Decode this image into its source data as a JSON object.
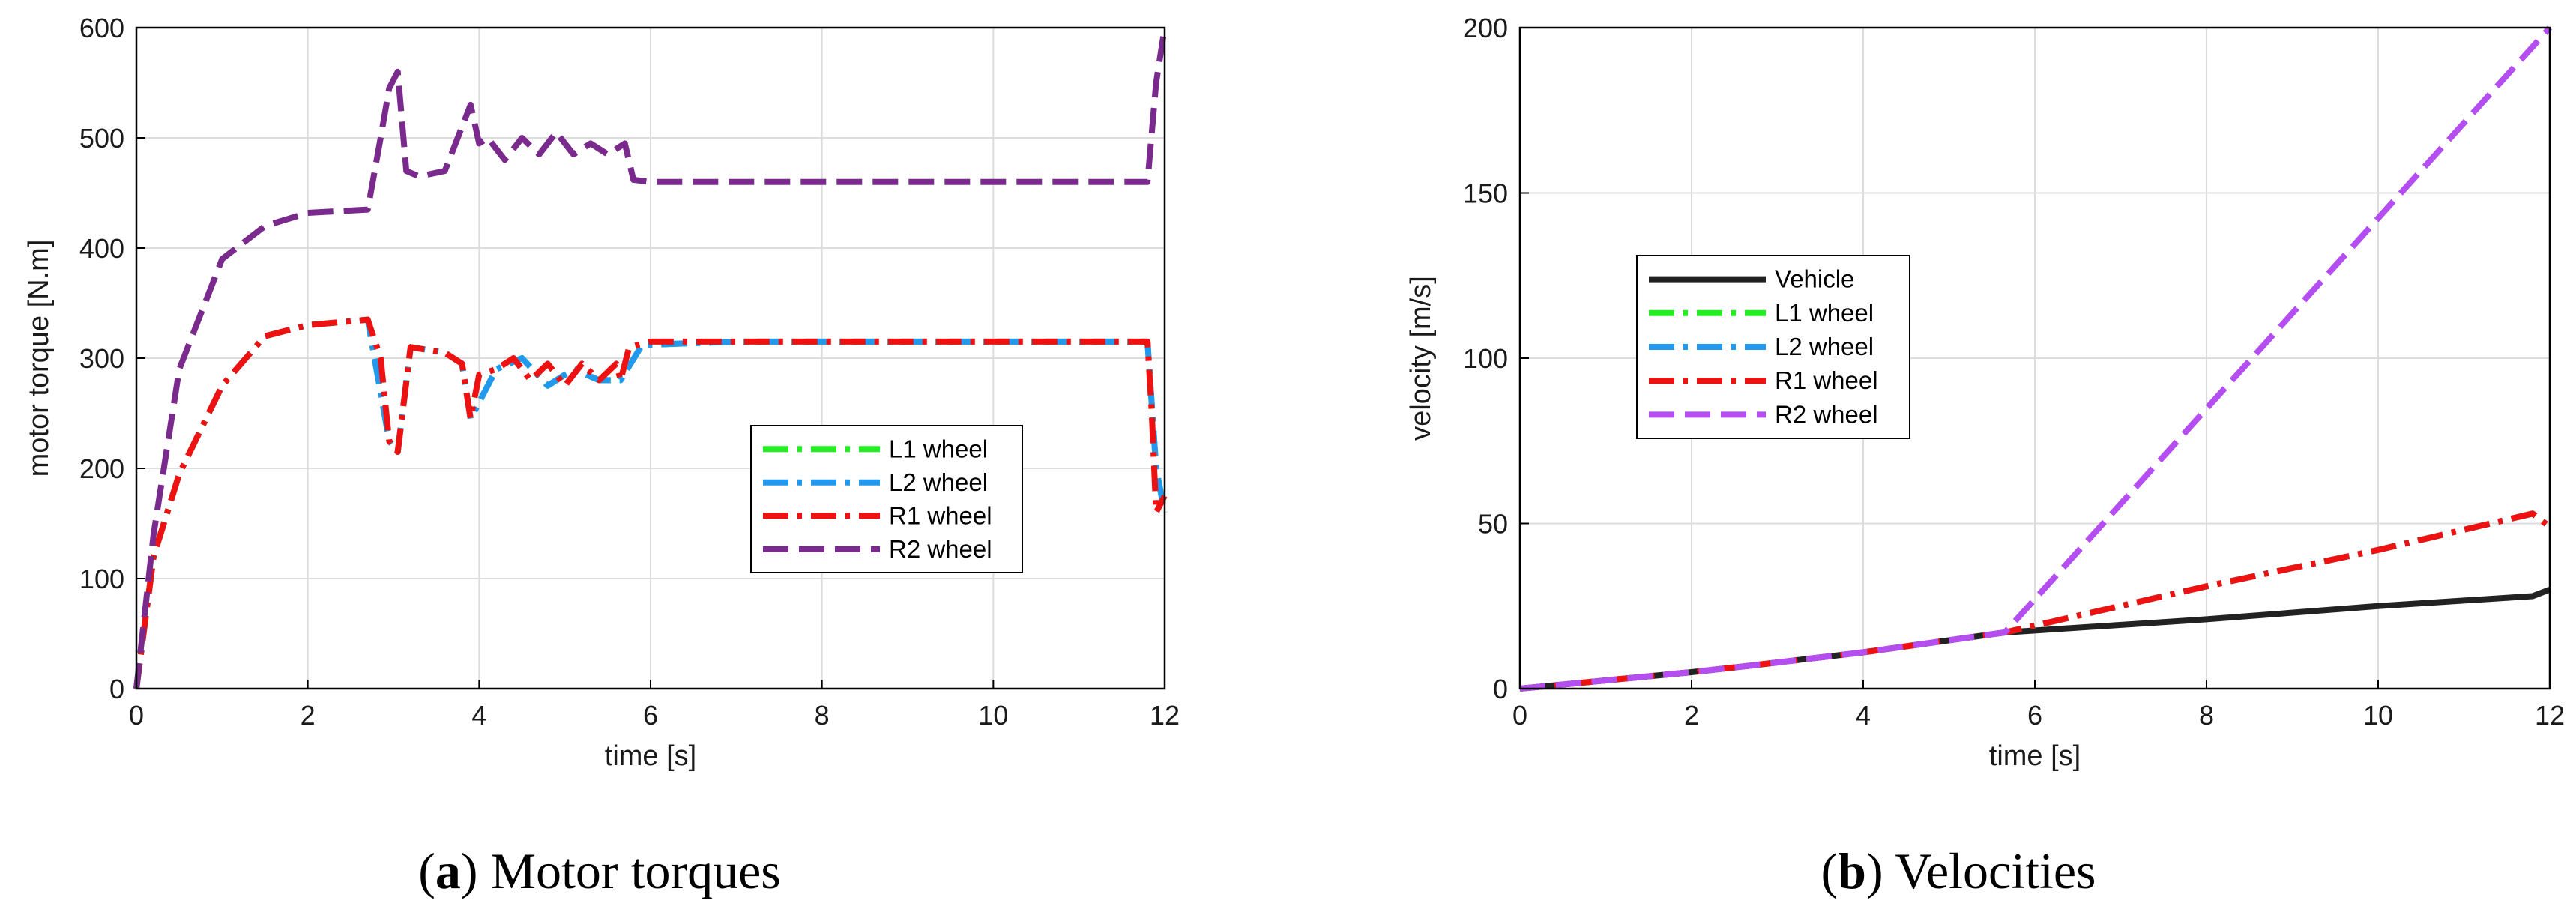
{
  "captions": [
    {
      "label": "a",
      "text": "Motor torques"
    },
    {
      "label": "b",
      "text": "Velocities"
    }
  ],
  "colors": {
    "L1": "#22ee22",
    "L2": "#2299ee",
    "R1": "#ee1111",
    "R2_torque": "#7a2a8c",
    "R2_velocity": "#b44ef0",
    "Vehicle": "#222222"
  },
  "chart_data": [
    {
      "type": "line",
      "xlabel": "time [s]",
      "ylabel": "motor torque [N.m]",
      "xlim": [
        0,
        12
      ],
      "ylim": [
        0,
        600
      ],
      "xticks": [
        "0",
        "2",
        "4",
        "6",
        "8",
        "10",
        "12"
      ],
      "yticks": [
        "0",
        "100",
        "200",
        "300",
        "400",
        "500",
        "600"
      ],
      "grid": true,
      "legend_position": "center-right",
      "series": [
        {
          "name": "L1 wheel",
          "style": "dashdot",
          "x": [
            0,
            0.2,
            0.5,
            1,
            1.5,
            2,
            2.7,
            2.95,
            3.05,
            3.2,
            3.6,
            3.8,
            3.9,
            4.2,
            4.5,
            4.8,
            5.1,
            5.4,
            5.65,
            5.9,
            7,
            9,
            11,
            11.8,
            11.9,
            12
          ],
          "y": [
            0,
            120,
            195,
            275,
            320,
            330,
            335,
            225,
            215,
            310,
            305,
            295,
            245,
            290,
            300,
            275,
            290,
            280,
            280,
            312,
            315,
            315,
            315,
            315,
            200,
            160
          ]
        },
        {
          "name": "L2 wheel",
          "style": "dashdot",
          "x": [
            0,
            0.2,
            0.5,
            1,
            1.5,
            2,
            2.7,
            2.95,
            3.05,
            3.2,
            3.6,
            3.8,
            3.9,
            4.2,
            4.5,
            4.8,
            5.1,
            5.4,
            5.65,
            5.9,
            7,
            9,
            11,
            11.8,
            11.9,
            12
          ],
          "y": [
            0,
            120,
            195,
            275,
            320,
            330,
            335,
            225,
            215,
            310,
            305,
            295,
            245,
            290,
            300,
            275,
            290,
            280,
            280,
            312,
            315,
            315,
            315,
            315,
            200,
            160
          ]
        },
        {
          "name": "R1 wheel",
          "style": "dashdot",
          "x": [
            0,
            0.2,
            0.5,
            1,
            1.5,
            2,
            2.7,
            2.85,
            2.95,
            3.05,
            3.2,
            3.6,
            3.8,
            3.9,
            4.0,
            4.2,
            4.4,
            4.6,
            4.8,
            5.0,
            5.2,
            5.4,
            5.6,
            5.65,
            5.75,
            6.0,
            7,
            9,
            11,
            11.8,
            11.85,
            11.9,
            12
          ],
          "y": [
            0,
            120,
            195,
            275,
            320,
            330,
            335,
            300,
            225,
            215,
            310,
            305,
            295,
            245,
            285,
            290,
            300,
            280,
            295,
            275,
            295,
            280,
            295,
            280,
            310,
            315,
            315,
            315,
            315,
            315,
            250,
            160,
            175
          ]
        },
        {
          "name": "R2 wheel",
          "style": "dashed",
          "x": [
            0,
            0.2,
            0.5,
            1,
            1.5,
            2,
            2.7,
            2.85,
            2.95,
            3.05,
            3.15,
            3.3,
            3.6,
            3.8,
            3.9,
            4.0,
            4.1,
            4.3,
            4.5,
            4.7,
            4.9,
            5.1,
            5.3,
            5.5,
            5.7,
            5.8,
            6.0,
            7,
            9,
            11,
            11.8,
            11.9,
            12
          ],
          "y": [
            0,
            140,
            290,
            390,
            420,
            432,
            435,
            500,
            545,
            560,
            470,
            465,
            470,
            510,
            530,
            495,
            500,
            480,
            500,
            485,
            505,
            485,
            495,
            485,
            495,
            462,
            460,
            460,
            460,
            460,
            460,
            550,
            600
          ]
        }
      ]
    },
    {
      "type": "line",
      "xlabel": "time [s]",
      "ylabel": "velocity [m/s]",
      "xlim": [
        0,
        12
      ],
      "ylim": [
        0,
        200
      ],
      "xticks": [
        "0",
        "2",
        "4",
        "6",
        "8",
        "10",
        "12"
      ],
      "yticks": [
        "0",
        "50",
        "100",
        "150",
        "200"
      ],
      "grid": true,
      "legend_position": "upper-left",
      "series": [
        {
          "name": "Vehicle",
          "style": "solid",
          "x": [
            0,
            2,
            2.7,
            4,
            5.65,
            8,
            10,
            11.8,
            12
          ],
          "y": [
            0,
            5,
            7,
            11,
            17,
            21,
            25,
            28,
            30
          ]
        },
        {
          "name": "L1 wheel",
          "style": "dashdot",
          "x": [
            0,
            2,
            2.7,
            4,
            5.65,
            8,
            10,
            11.8,
            12
          ],
          "y": [
            0,
            5,
            7,
            11,
            17,
            31,
            42,
            53,
            49
          ]
        },
        {
          "name": "L2 wheel",
          "style": "dashdot",
          "x": [
            0,
            2,
            2.7,
            4,
            5.65,
            8,
            10,
            11.8,
            12
          ],
          "y": [
            0,
            5,
            7,
            11,
            17,
            31,
            42,
            53,
            49
          ]
        },
        {
          "name": "R1 wheel",
          "style": "dashdot",
          "x": [
            0,
            2,
            2.7,
            4,
            5.65,
            8,
            10,
            11.8,
            12
          ],
          "y": [
            0,
            5,
            7,
            11,
            17,
            31,
            42,
            53,
            49
          ]
        },
        {
          "name": "R2 wheel",
          "style": "dashed",
          "x": [
            0,
            2,
            2.7,
            4,
            5.65,
            12
          ],
          "y": [
            0,
            5,
            7,
            11,
            17,
            200
          ]
        }
      ]
    }
  ]
}
